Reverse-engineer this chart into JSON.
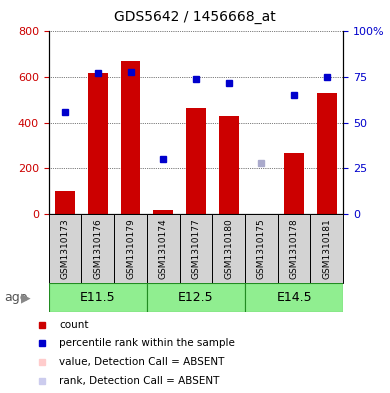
{
  "title": "GDS5642 / 1456668_at",
  "samples": [
    "GSM1310173",
    "GSM1310176",
    "GSM1310179",
    "GSM1310174",
    "GSM1310177",
    "GSM1310180",
    "GSM1310175",
    "GSM1310178",
    "GSM1310181"
  ],
  "age_groups": [
    {
      "label": "E11.5",
      "start": 0,
      "end": 3
    },
    {
      "label": "E12.5",
      "start": 3,
      "end": 6
    },
    {
      "label": "E14.5",
      "start": 6,
      "end": 9
    }
  ],
  "count_values": [
    100,
    620,
    670,
    20,
    465,
    430,
    0,
    270,
    530
  ],
  "count_absent": [
    false,
    false,
    false,
    false,
    false,
    false,
    true,
    false,
    false
  ],
  "rank_values": [
    56,
    77,
    78,
    30,
    74,
    72,
    28,
    65,
    75
  ],
  "rank_absent": [
    false,
    false,
    false,
    false,
    false,
    false,
    true,
    false,
    false
  ],
  "count_color": "#cc0000",
  "count_absent_color": "#ffaaaa",
  "rank_color": "#0000cc",
  "rank_absent_color": "#aaaacc",
  "ylim_left": [
    0,
    800
  ],
  "ylim_right": [
    0,
    100
  ],
  "yticks_left": [
    0,
    200,
    400,
    600,
    800
  ],
  "yticks_right": [
    0,
    25,
    50,
    75,
    100
  ],
  "yticklabels_right": [
    "0",
    "25",
    "50",
    "75",
    "100%"
  ],
  "background_color": "#ffffff",
  "sample_label_bg": "#d3d3d3",
  "age_band_color": "#90ee90",
  "age_band_border_color": "#228B22",
  "legend_items": [
    {
      "label": "count",
      "color": "#cc0000"
    },
    {
      "label": "percentile rank within the sample",
      "color": "#0000cc"
    },
    {
      "label": "value, Detection Call = ABSENT",
      "color": "#ffcccc"
    },
    {
      "label": "rank, Detection Call = ABSENT",
      "color": "#ccccee"
    }
  ]
}
